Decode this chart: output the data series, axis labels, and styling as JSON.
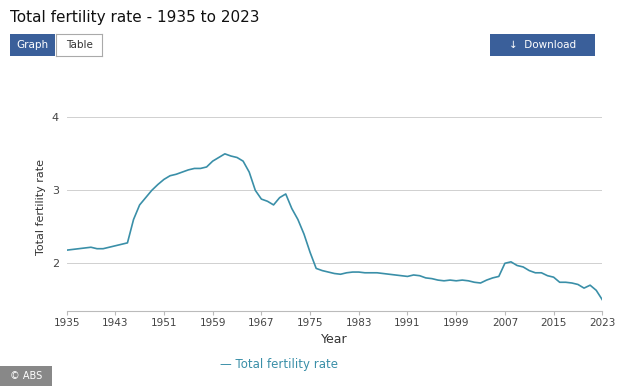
{
  "title": "Total fertility rate - 1935 to 2023",
  "xlabel": "Year",
  "ylabel": "Total fertility rate",
  "legend_label": "— Total fertility rate",
  "line_color": "#3a8fa8",
  "background_color": "#ffffff",
  "plot_bg_color": "#ffffff",
  "grid_color": "#d0d0d0",
  "yticks": [
    2,
    3,
    4
  ],
  "xtick_labels": [
    "1935",
    "1943",
    "1951",
    "1959",
    "1967",
    "1975",
    "1983",
    "1991",
    "1999",
    "2007",
    "2015",
    "2023"
  ],
  "years": [
    1935,
    1936,
    1937,
    1938,
    1939,
    1940,
    1941,
    1942,
    1943,
    1944,
    1945,
    1946,
    1947,
    1948,
    1949,
    1950,
    1951,
    1952,
    1953,
    1954,
    1955,
    1956,
    1957,
    1958,
    1959,
    1960,
    1961,
    1962,
    1963,
    1964,
    1965,
    1966,
    1967,
    1968,
    1969,
    1970,
    1971,
    1972,
    1973,
    1974,
    1975,
    1976,
    1977,
    1978,
    1979,
    1980,
    1981,
    1982,
    1983,
    1984,
    1985,
    1986,
    1987,
    1988,
    1989,
    1990,
    1991,
    1992,
    1993,
    1994,
    1995,
    1996,
    1997,
    1998,
    1999,
    2000,
    2001,
    2002,
    2003,
    2004,
    2005,
    2006,
    2007,
    2008,
    2009,
    2010,
    2011,
    2012,
    2013,
    2014,
    2015,
    2016,
    2017,
    2018,
    2019,
    2020,
    2021,
    2022,
    2023
  ],
  "values": [
    2.18,
    2.19,
    2.2,
    2.21,
    2.22,
    2.2,
    2.2,
    2.22,
    2.24,
    2.26,
    2.28,
    2.6,
    2.8,
    2.9,
    3.0,
    3.08,
    3.15,
    3.2,
    3.22,
    3.25,
    3.28,
    3.3,
    3.3,
    3.32,
    3.4,
    3.45,
    3.5,
    3.47,
    3.45,
    3.4,
    3.25,
    3.0,
    2.88,
    2.85,
    2.8,
    2.9,
    2.95,
    2.75,
    2.6,
    2.4,
    2.15,
    1.93,
    1.9,
    1.88,
    1.86,
    1.85,
    1.87,
    1.88,
    1.88,
    1.87,
    1.87,
    1.87,
    1.86,
    1.85,
    1.84,
    1.83,
    1.82,
    1.84,
    1.83,
    1.8,
    1.79,
    1.77,
    1.76,
    1.77,
    1.76,
    1.77,
    1.76,
    1.74,
    1.73,
    1.77,
    1.8,
    1.82,
    2.0,
    2.02,
    1.97,
    1.95,
    1.9,
    1.87,
    1.87,
    1.83,
    1.81,
    1.74,
    1.74,
    1.73,
    1.71,
    1.66,
    1.7,
    1.63,
    1.5
  ],
  "btn_graph_color": "#3a5f9a",
  "btn_table_color": "#ffffff",
  "btn_dl_color": "#3a5f9a",
  "abs_bg": "#888888",
  "feedback_color": "#1a8a5a"
}
